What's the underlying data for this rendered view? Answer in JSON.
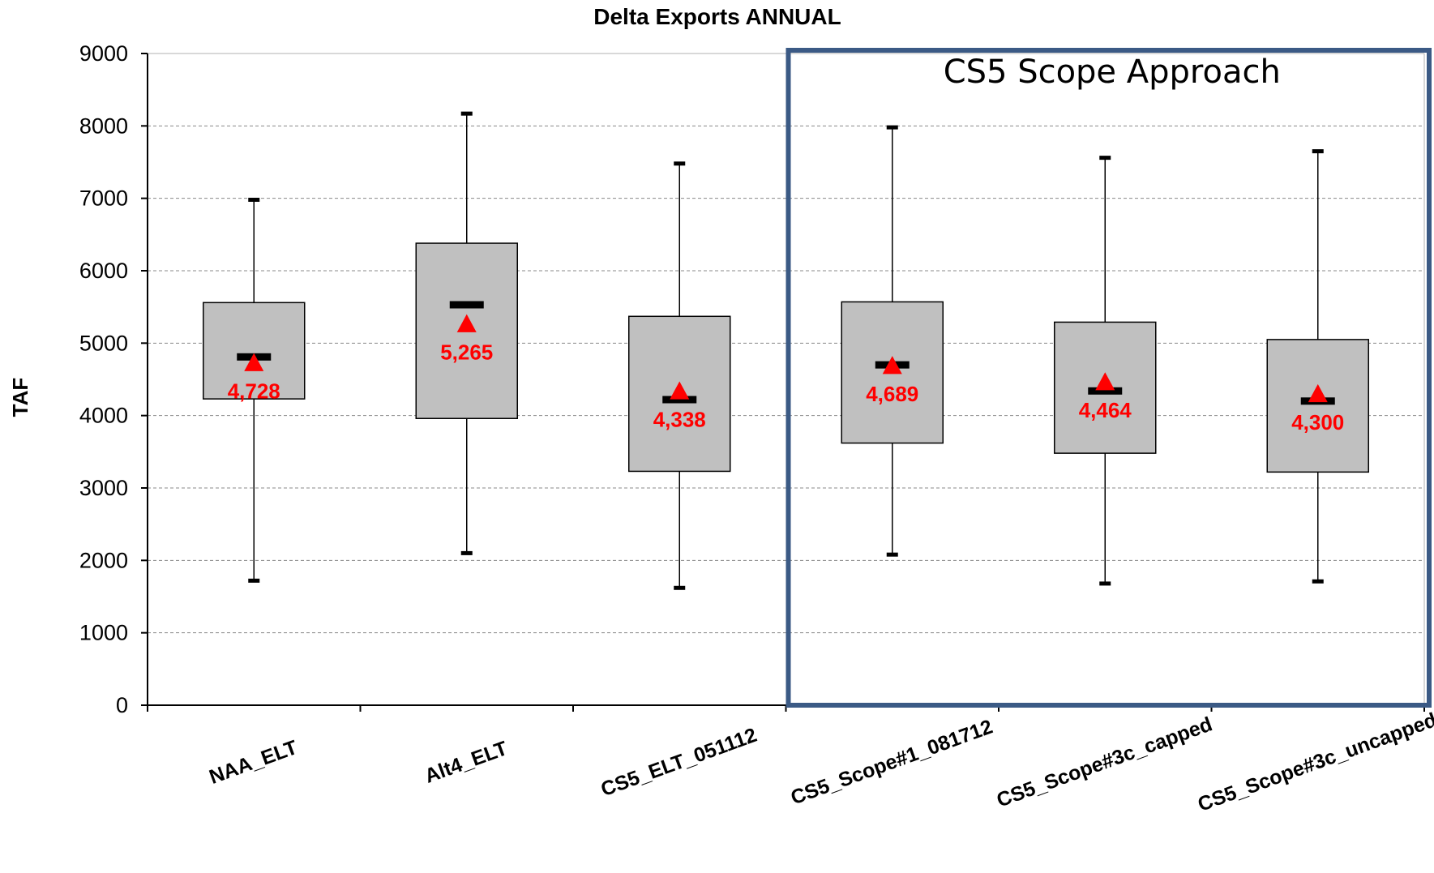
{
  "chart_data": {
    "type": "box",
    "title": "Delta Exports  ANNUAL",
    "xlabel": "",
    "ylabel": "TAF",
    "ylim": [
      0,
      9000
    ],
    "yticks": [
      0,
      1000,
      2000,
      3000,
      4000,
      5000,
      6000,
      7000,
      8000,
      9000
    ],
    "grid": true,
    "categories": [
      "NAA_ELT",
      "Alt4_ELT",
      "CS5_ELT_051112",
      "CS5_Scope#1_081712",
      "CS5_Scope#3c_capped",
      "CS5_Scope#3c_uncapped"
    ],
    "boxes": [
      {
        "category": "NAA_ELT",
        "min": 1720,
        "q1": 4230,
        "median": 4810,
        "q3": 5560,
        "max": 6980,
        "mean": 4728,
        "mean_label": "4,728"
      },
      {
        "category": "Alt4_ELT",
        "min": 2100,
        "q1": 3960,
        "median": 5530,
        "q3": 6380,
        "max": 8170,
        "mean": 5265,
        "mean_label": "5,265"
      },
      {
        "category": "CS5_ELT_051112",
        "min": 1620,
        "q1": 3230,
        "median": 4220,
        "q3": 5370,
        "max": 7480,
        "mean": 4338,
        "mean_label": "4,338"
      },
      {
        "category": "CS5_Scope#1_081712",
        "min": 2080,
        "q1": 3620,
        "median": 4700,
        "q3": 5570,
        "max": 7980,
        "mean": 4689,
        "mean_label": "4,689"
      },
      {
        "category": "CS5_Scope#3c_capped",
        "min": 1680,
        "q1": 3480,
        "median": 4340,
        "q3": 5290,
        "max": 7560,
        "mean": 4464,
        "mean_label": "4,464"
      },
      {
        "category": "CS5_Scope#3c_uncapped",
        "min": 1710,
        "q1": 3220,
        "median": 4200,
        "q3": 5050,
        "max": 7650,
        "mean": 4300,
        "mean_label": "4,300"
      }
    ],
    "colors": {
      "box_fill": "#c0c0c0",
      "mean_marker": "#ff0000",
      "mean_label": "#ff0000",
      "callout_border": "#3b5a85"
    },
    "annotation": {
      "label": "CS5 Scope Approach",
      "covers_categories": [
        "CS5_Scope#1_081712",
        "CS5_Scope#3c_capped",
        "CS5_Scope#3c_uncapped"
      ]
    }
  }
}
